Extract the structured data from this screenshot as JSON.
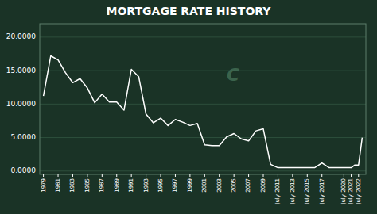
{
  "chart_data": {
    "type": "line",
    "title": "MORTGAGE RATE HISTORY",
    "x": [
      1979,
      1980,
      1981,
      1982,
      1983,
      1984,
      1985,
      1986,
      1987,
      1988,
      1989,
      1990,
      1991,
      1992,
      1993,
      1994,
      1995,
      1996,
      1997,
      1998,
      1999,
      2000,
      2001,
      2002,
      2003,
      2004,
      2005,
      2006,
      2007,
      2008,
      2009,
      2010,
      2011,
      2012,
      2013,
      2014,
      2015,
      2016,
      2017,
      2018,
      2019,
      2020,
      2021,
      2021.5,
      2022,
      2022.5
    ],
    "values": [
      11.2,
      17.2,
      16.6,
      14.7,
      13.2,
      13.8,
      12.4,
      10.2,
      11.5,
      10.3,
      10.3,
      9.1,
      15.2,
      14.1,
      8.5,
      7.2,
      7.9,
      6.8,
      7.7,
      7.3,
      6.8,
      7.1,
      3.9,
      3.8,
      3.8,
      5.1,
      5.6,
      4.8,
      4.5,
      6.0,
      6.3,
      1.0,
      0.5,
      0.5,
      0.5,
      0.5,
      0.5,
      0.5,
      1.2,
      0.5,
      0.5,
      0.5,
      0.5,
      0.9,
      0.9,
      5.0
    ],
    "color": "#ffffff",
    "xlim": [
      1978.5,
      2023
    ],
    "xticks": [
      1979,
      1981,
      1983,
      1985,
      1987,
      1989,
      1991,
      1993,
      1995,
      1997,
      1999,
      2001,
      2003,
      2005,
      2007,
      2009,
      {
        "value": 2011,
        "label": "July 2011"
      },
      {
        "value": 2013,
        "label": "July 2013"
      },
      {
        "value": 2015,
        "label": "July 2015"
      },
      {
        "value": 2017,
        "label": "July 2017"
      },
      {
        "value": 2020,
        "label": "July 2020"
      },
      {
        "value": 2021,
        "label": "July 2021"
      },
      {
        "value": 2022,
        "label": "July 2022"
      }
    ],
    "ylim": [
      -0.5,
      22
    ],
    "yticks": [
      {
        "value": 0.0,
        "label": "0.0000"
      },
      {
        "value": 5.0,
        "label": "5.0000"
      },
      {
        "value": 10.0,
        "label": "10.0000"
      },
      {
        "value": 15.0,
        "label": "15.0000"
      },
      {
        "value": 20.0,
        "label": "20.0000"
      }
    ],
    "grid": true,
    "annotations": [
      {
        "text": "C",
        "x": 2004,
        "y": 13.5
      }
    ]
  }
}
